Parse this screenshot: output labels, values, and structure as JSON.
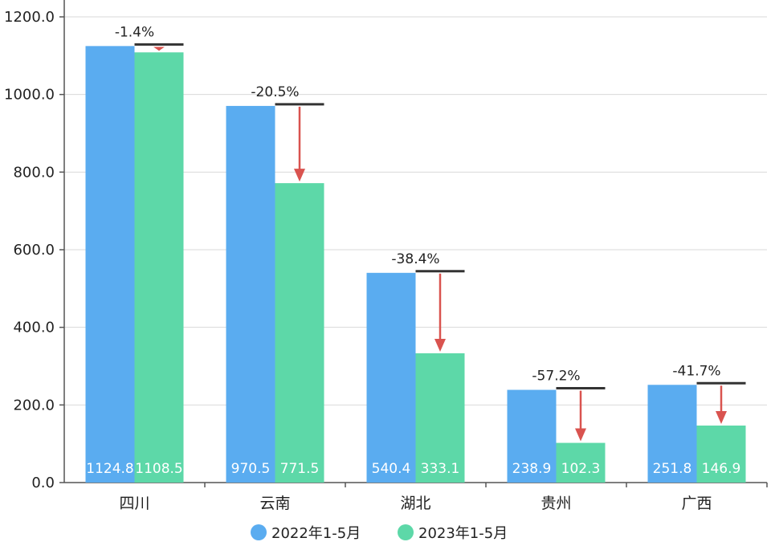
{
  "chart_data": {
    "type": "bar",
    "categories": [
      "四川",
      "云南",
      "湖北",
      "贵州",
      "广西"
    ],
    "series": [
      {
        "name": "2022年1-5月",
        "values": [
          1124.8,
          970.5,
          540.4,
          238.9,
          251.8
        ],
        "color": "#5aacf0"
      },
      {
        "name": "2023年1-5月",
        "values": [
          1108.5,
          771.5,
          333.1,
          102.3,
          146.9
        ],
        "color": "#5dd8a8"
      }
    ],
    "value_labels": [
      [
        "1124.8",
        "970.5",
        "540.4",
        "238.9",
        "251.8"
      ],
      [
        "1108.5",
        "771.5",
        "333.1",
        "102.3",
        "146.9"
      ]
    ],
    "change_labels": [
      "-1.4%",
      "-20.5%",
      "-38.4%",
      "-57.2%",
      "-41.7%"
    ],
    "yticks": [
      "0.0",
      "200.0",
      "400.0",
      "600.0",
      "800.0",
      "1000.0",
      "1200.0"
    ],
    "ylim": [
      0,
      1200
    ],
    "grid": true,
    "legend_position": "bottom",
    "arrow_color": "#d9534f",
    "title": "",
    "xlabel": "",
    "ylabel": ""
  }
}
